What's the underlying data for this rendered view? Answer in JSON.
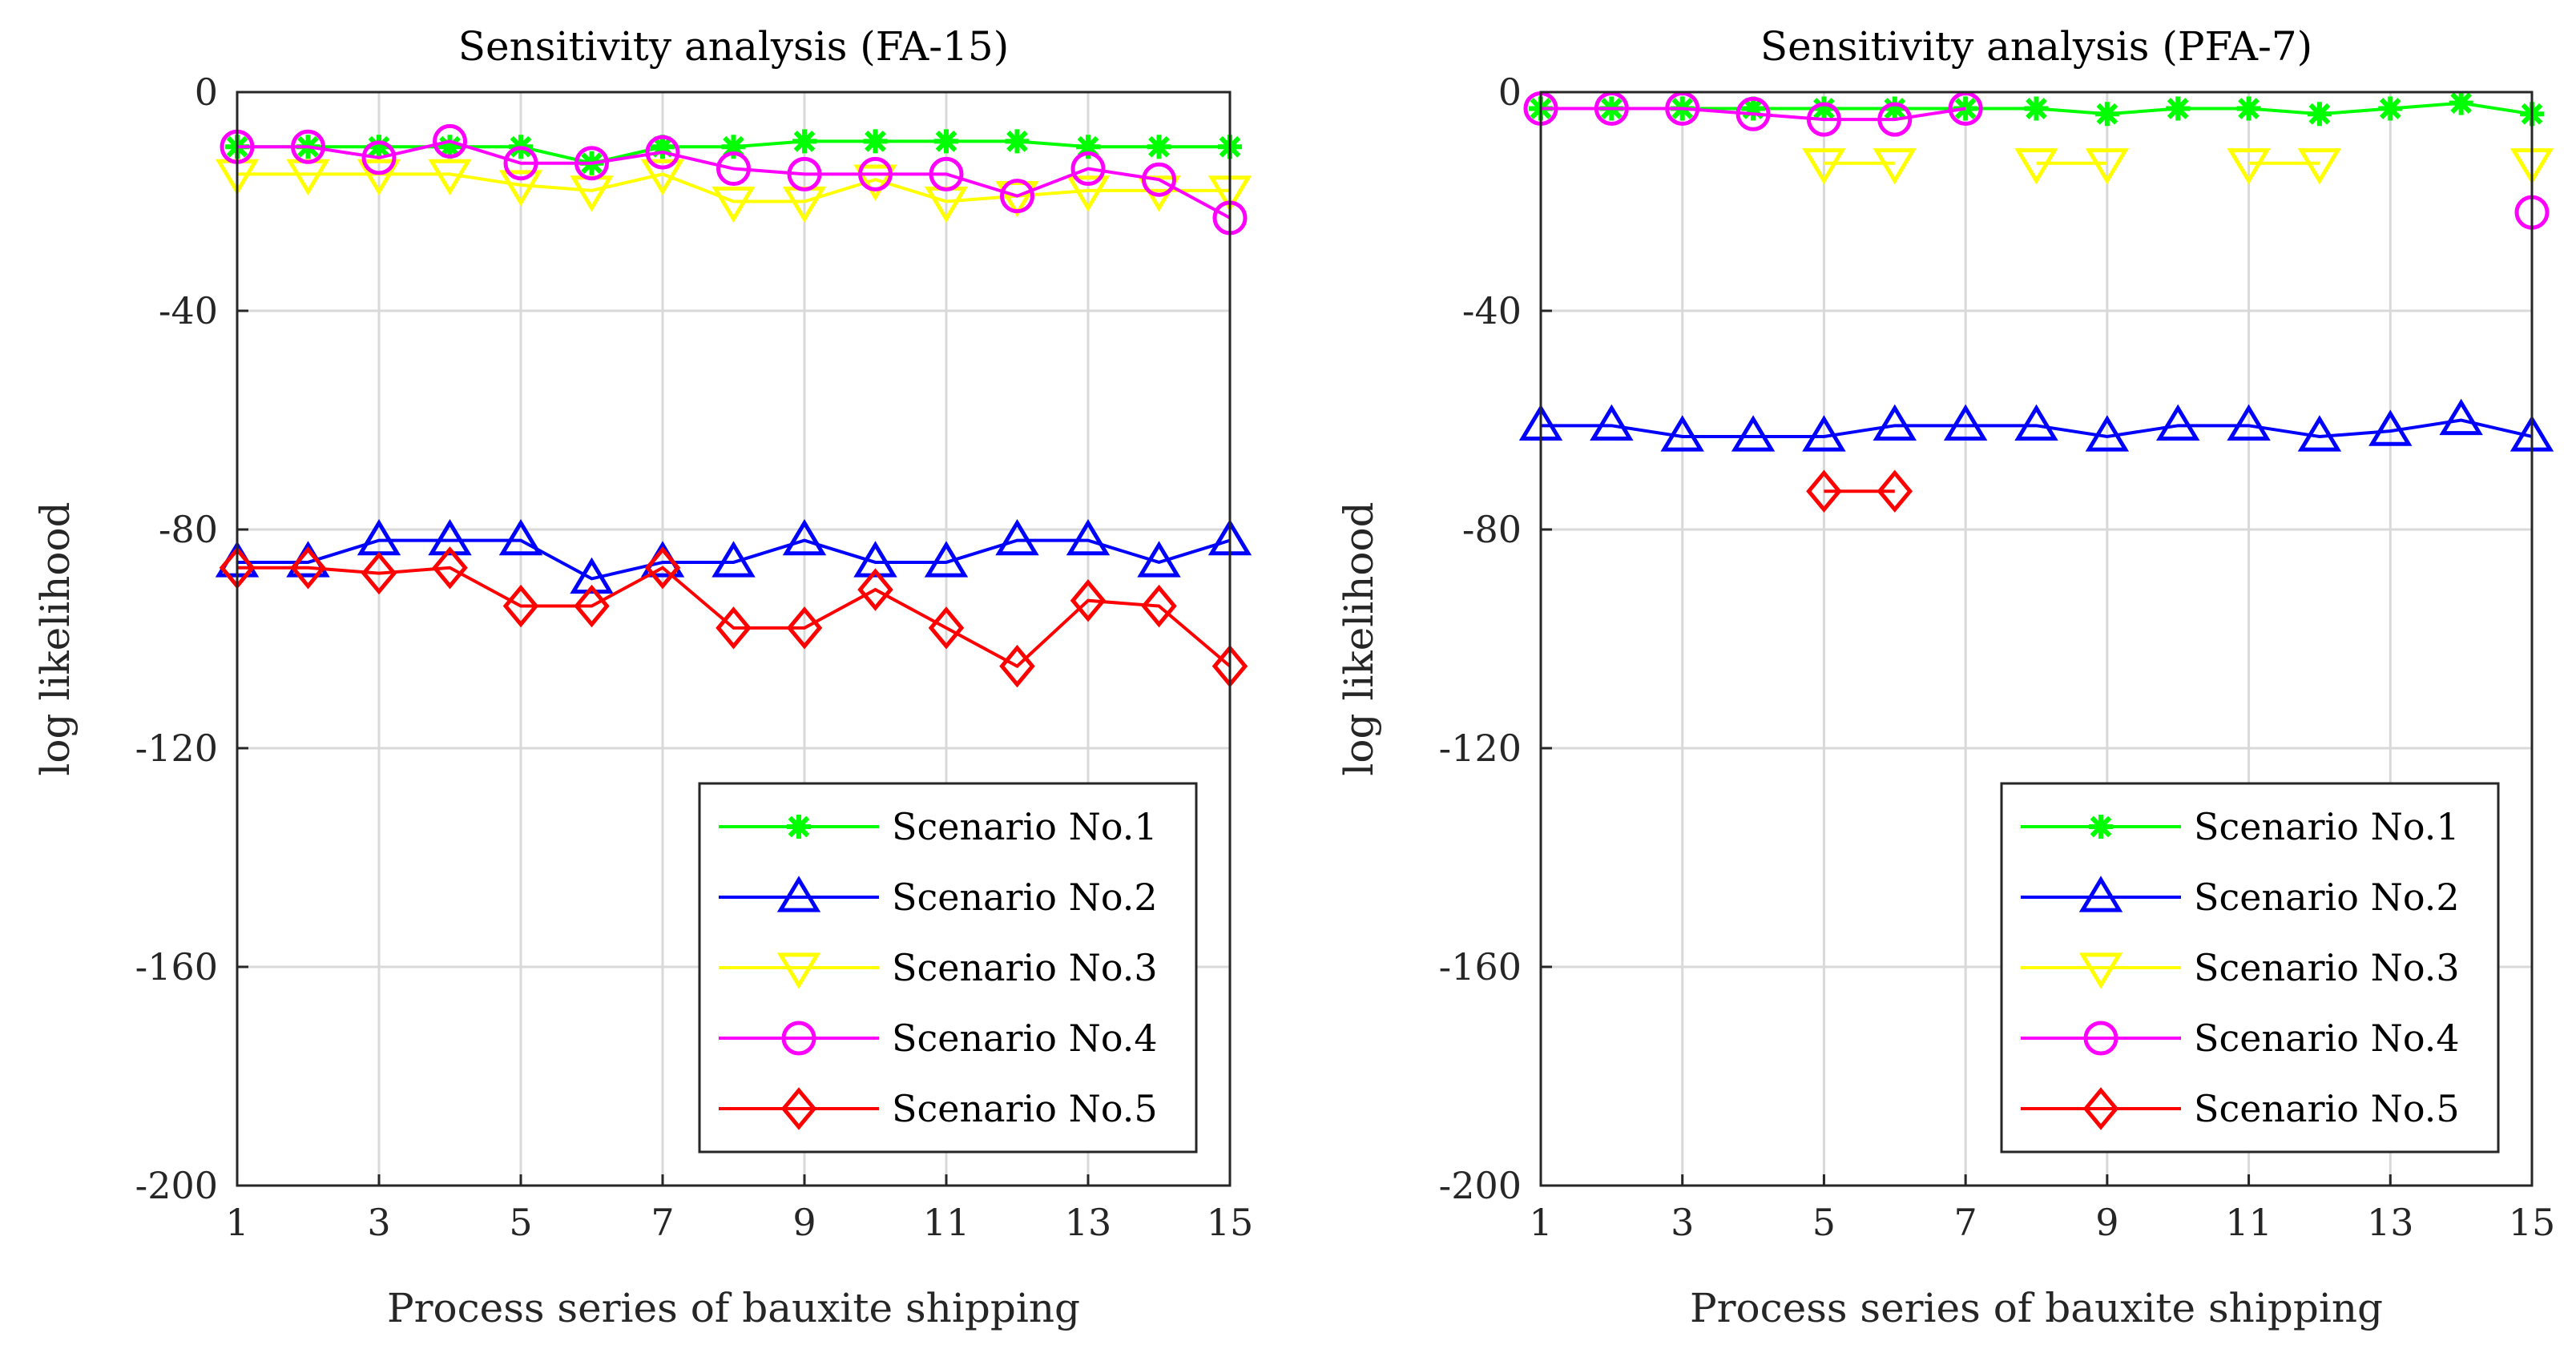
{
  "chart_data": [
    {
      "type": "line",
      "title": "Sensitivity analysis (FA-15)",
      "xlabel": "Process series of bauxite shipping",
      "ylabel": "log likelihood",
      "xlim": [
        1,
        15
      ],
      "ylim": [
        -200,
        0
      ],
      "xticks": [
        1,
        3,
        5,
        7,
        9,
        11,
        13,
        15
      ],
      "yticks": [
        0,
        -40,
        -80,
        -120,
        -160,
        -200
      ],
      "grid": true,
      "legend_position": "bottom-right",
      "x": [
        1,
        2,
        3,
        4,
        5,
        6,
        7,
        8,
        9,
        10,
        11,
        12,
        13,
        14,
        15
      ],
      "series": [
        {
          "name": "Scenario No.1",
          "color": "#00ff00",
          "marker": "asterisk",
          "values": [
            -10,
            -10,
            -10,
            -10,
            -10,
            -13,
            -10,
            -10,
            -9,
            -9,
            -9,
            -9,
            -10,
            -10,
            -10
          ]
        },
        {
          "name": "Scenario No.2",
          "color": "#0000ff",
          "marker": "triangle-up",
          "values": [
            -86,
            -86,
            -82,
            -82,
            -82,
            -89,
            -86,
            -86,
            -82,
            -86,
            -86,
            -82,
            -82,
            -86,
            -82
          ]
        },
        {
          "name": "Scenario No.3",
          "color": "#ffff00",
          "marker": "triangle-down",
          "values": [
            -15,
            -15,
            -15,
            -15,
            -17,
            -18,
            -15,
            -20,
            -20,
            -16,
            -20,
            -19,
            -18,
            -18,
            -18
          ]
        },
        {
          "name": "Scenario No.4",
          "color": "#ff00ff",
          "marker": "circle",
          "values": [
            -10,
            -10,
            -12,
            -9,
            -13,
            -13,
            -11,
            -14,
            -15,
            -15,
            -15,
            -19,
            -14,
            -16,
            -23
          ]
        },
        {
          "name": "Scenario No.5",
          "color": "#ff0000",
          "marker": "diamond",
          "values": [
            -87,
            -87,
            -88,
            -87,
            -94,
            -94,
            -87,
            -98,
            -98,
            -91,
            -98,
            -105,
            -93,
            -94,
            -105
          ]
        }
      ]
    },
    {
      "type": "line",
      "title": "Sensitivity analysis (PFA-7)",
      "xlabel": "Process series of bauxite shipping",
      "ylabel": "log likelihood",
      "xlim": [
        1,
        15
      ],
      "ylim": [
        -200,
        0
      ],
      "xticks": [
        1,
        3,
        5,
        7,
        9,
        11,
        13,
        15
      ],
      "yticks": [
        0,
        -40,
        -80,
        -120,
        -160,
        -200
      ],
      "grid": true,
      "legend_position": "bottom-right",
      "x": [
        1,
        2,
        3,
        4,
        5,
        6,
        7,
        8,
        9,
        10,
        11,
        12,
        13,
        14,
        15
      ],
      "series": [
        {
          "name": "Scenario No.1",
          "color": "#00ff00",
          "marker": "asterisk",
          "values": [
            -3,
            -3,
            -3,
            -3,
            -3,
            -3,
            -3,
            -3,
            -4,
            -3,
            -3,
            -4,
            -3,
            -2,
            -4
          ]
        },
        {
          "name": "Scenario No.2",
          "color": "#0000ff",
          "marker": "triangle-up",
          "values": [
            -61,
            -61,
            -63,
            -63,
            -63,
            -61,
            -61,
            -61,
            -63,
            -61,
            -61,
            -63,
            -62,
            -60,
            -63
          ]
        },
        {
          "name": "Scenario No.3",
          "color": "#ffff00",
          "marker": "triangle-down",
          "values": [
            null,
            null,
            null,
            null,
            -13,
            -13,
            null,
            -13,
            -13,
            null,
            -13,
            -13,
            null,
            null,
            -13
          ]
        },
        {
          "name": "Scenario No.4",
          "color": "#ff00ff",
          "marker": "circle",
          "values": [
            -3,
            -3,
            -3,
            -4,
            -5,
            -5,
            -3,
            null,
            null,
            null,
            null,
            null,
            null,
            null,
            -22
          ]
        },
        {
          "name": "Scenario No.5",
          "color": "#ff0000",
          "marker": "diamond",
          "values": [
            null,
            null,
            null,
            null,
            -73,
            -73,
            null,
            null,
            null,
            null,
            null,
            null,
            null,
            null,
            null
          ]
        }
      ]
    }
  ]
}
